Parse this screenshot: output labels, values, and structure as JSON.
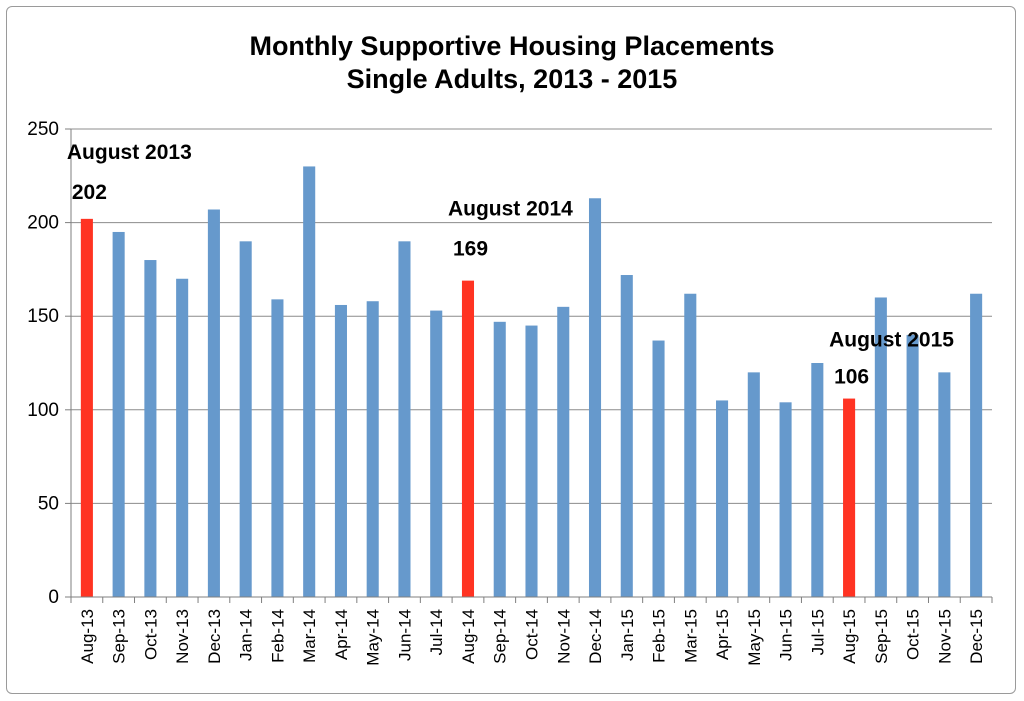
{
  "chart_data": {
    "type": "bar",
    "title": [
      "Monthly Supportive Housing Placements",
      "Single Adults, 2013 - 2015"
    ],
    "xlabel": "",
    "ylabel": "",
    "ylim": [
      0,
      250
    ],
    "yticks": [
      0,
      50,
      100,
      150,
      200,
      250
    ],
    "grid": true,
    "categories": [
      "Aug-13",
      "Sep-13",
      "Oct-13",
      "Nov-13",
      "Dec-13",
      "Jan-14",
      "Feb-14",
      "Mar-14",
      "Apr-14",
      "May-14",
      "Jun-14",
      "Jul-14",
      "Aug-14",
      "Sep-14",
      "Oct-14",
      "Nov-14",
      "Dec-14",
      "Jan-15",
      "Feb-15",
      "Mar-15",
      "Apr-15",
      "May-15",
      "Jun-15",
      "Jul-15",
      "Aug-15",
      "Sep-15",
      "Oct-15",
      "Nov-15",
      "Dec-15"
    ],
    "values": [
      202,
      195,
      180,
      170,
      207,
      190,
      159,
      230,
      156,
      158,
      190,
      153,
      169,
      147,
      145,
      155,
      213,
      172,
      137,
      162,
      105,
      120,
      104,
      125,
      106,
      160,
      140,
      120,
      162
    ],
    "highlight_color": "#ff3322",
    "bar_color": "#6699cc",
    "annotations": [
      {
        "category": "Aug-13",
        "label": "August 2013",
        "value_label": "202"
      },
      {
        "category": "Aug-14",
        "label": "August 2014",
        "value_label": "169"
      },
      {
        "category": "Aug-15",
        "label": "August 2015",
        "value_label": "106"
      }
    ]
  }
}
